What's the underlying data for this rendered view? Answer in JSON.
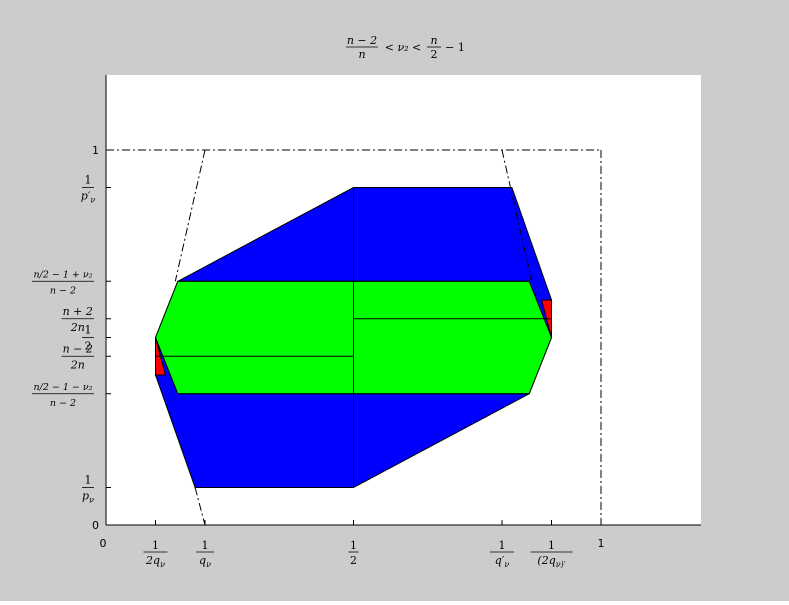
{
  "title": {
    "lhs_num": "n − 2",
    "lhs_den": "n",
    "middle": "< ν₂ <",
    "rhs_num": "n",
    "rhs_den": "2",
    "rhs_tail": "− 1"
  },
  "colors": {
    "frame": "#cccccc",
    "plot_bg": "#ffffff",
    "outer_region": "#0000ff",
    "inner_region": "#00ff00",
    "corner_region": "#ff0000",
    "lines": "#000000"
  },
  "x_ticks": [
    {
      "id": "zero",
      "num": "0",
      "den": "",
      "value": 0
    },
    {
      "id": "one-over-2q",
      "num": "1",
      "den": "2q_ν",
      "value": 0.1
    },
    {
      "id": "one-over-q",
      "num": "1",
      "den": "q_ν",
      "value": 0.2
    },
    {
      "id": "half",
      "num": "1",
      "den": "2",
      "value": 0.5
    },
    {
      "id": "one-over-qprime",
      "num": "1",
      "den": "q′_ν",
      "value": 0.8
    },
    {
      "id": "one-over-2q-prime",
      "num": "1",
      "den": "(2q_ν)′",
      "value": 0.9
    },
    {
      "id": "one",
      "num": "1",
      "den": "",
      "value": 1
    }
  ],
  "y_ticks": [
    {
      "id": "zero",
      "num": "0",
      "den": "",
      "value": 0
    },
    {
      "id": "one-over-p",
      "num": "1",
      "den": "p_ν",
      "value": 0.1
    },
    {
      "id": "low-nu",
      "num": "n/2 − 1 − ν₂",
      "den": "n − 2",
      "value": 0.35
    },
    {
      "id": "n-minus-2-over-2n",
      "num": "n − 2",
      "den": "2n",
      "value": 0.45
    },
    {
      "id": "half",
      "num": "1",
      "den": "2",
      "value": 0.5
    },
    {
      "id": "n-plus-2-over-2n",
      "num": "n + 2",
      "den": "2n",
      "value": 0.55
    },
    {
      "id": "high-nu",
      "num": "n/2 − 1 + ν₂",
      "den": "n − 2",
      "value": 0.65
    },
    {
      "id": "one-over-pprime",
      "num": "1",
      "den": "p′_ν",
      "value": 0.9
    },
    {
      "id": "one",
      "num": "1",
      "den": "",
      "value": 1
    }
  ],
  "regions": {
    "outer": [
      [
        0.1,
        0.5
      ],
      [
        0.145,
        0.65
      ],
      [
        0.5,
        0.9
      ],
      [
        0.82,
        0.9
      ],
      [
        0.9,
        0.6
      ],
      [
        0.9,
        0.5
      ],
      [
        0.855,
        0.35
      ],
      [
        0.5,
        0.1
      ],
      [
        0.18,
        0.1
      ],
      [
        0.1,
        0.4
      ]
    ],
    "inner": [
      [
        0.1,
        0.5
      ],
      [
        0.145,
        0.65
      ],
      [
        0.855,
        0.65
      ],
      [
        0.9,
        0.5
      ],
      [
        0.855,
        0.35
      ],
      [
        0.145,
        0.35
      ]
    ],
    "corner_left": [
      [
        0.1,
        0.5
      ],
      [
        0.1,
        0.4
      ],
      [
        0.12,
        0.4
      ]
    ],
    "corner_right": [
      [
        0.9,
        0.6
      ],
      [
        0.9,
        0.5
      ],
      [
        0.88,
        0.6
      ]
    ]
  },
  "inner_lines": [
    [
      [
        0.5,
        0.9
      ],
      [
        0.5,
        0.1
      ]
    ],
    [
      [
        0.5,
        0.55
      ],
      [
        0.9,
        0.55
      ]
    ],
    [
      [
        0.1,
        0.45
      ],
      [
        0.5,
        0.45
      ]
    ],
    [
      [
        0.145,
        0.65
      ],
      [
        0.855,
        0.65
      ]
    ],
    [
      [
        0.145,
        0.35
      ],
      [
        0.855,
        0.35
      ]
    ]
  ],
  "dashdot_lines": [
    [
      [
        0,
        1
      ],
      [
        1,
        1
      ]
    ],
    [
      [
        1,
        1
      ],
      [
        1,
        0
      ]
    ],
    [
      [
        0.2,
        1
      ],
      [
        0.14,
        0.65
      ]
    ],
    [
      [
        0.18,
        0.1
      ],
      [
        0.2,
        0
      ]
    ],
    [
      [
        0.8,
        1
      ],
      [
        0.86,
        0.65
      ]
    ]
  ]
}
